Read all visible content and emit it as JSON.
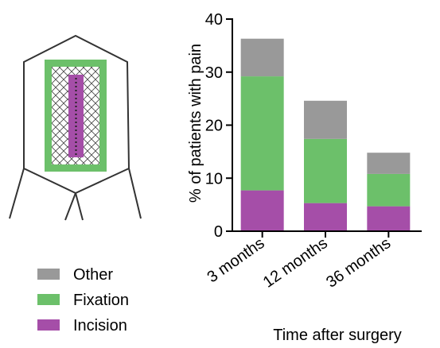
{
  "chart_data": {
    "type": "bar",
    "stacked": true,
    "categories": [
      "3 months",
      "12 months",
      "36 months"
    ],
    "series": [
      {
        "name": "Incision",
        "color": "#a54ea8",
        "values": [
          7.7,
          5.3,
          4.7
        ]
      },
      {
        "name": "Fixation",
        "color": "#6cc06a",
        "values": [
          21.5,
          12.1,
          6.1
        ]
      },
      {
        "name": "Other",
        "color": "#999999",
        "values": [
          7.1,
          7.2,
          4.0
        ]
      }
    ],
    "xlabel": "Time after surgery",
    "ylabel": "% of patients with pain",
    "ylim": [
      0,
      40
    ],
    "yticks": [
      "0",
      "10",
      "20",
      "30",
      "40"
    ],
    "legend_position": "bottom-left",
    "legend_order": [
      "Other",
      "Fixation",
      "Incision"
    ],
    "grid": false
  },
  "diagram": {
    "icon": "mesh-implant-body-icon",
    "outline_color": "#333333",
    "fixation_color": "#6cc06a",
    "incision_color": "#a54ea8"
  }
}
